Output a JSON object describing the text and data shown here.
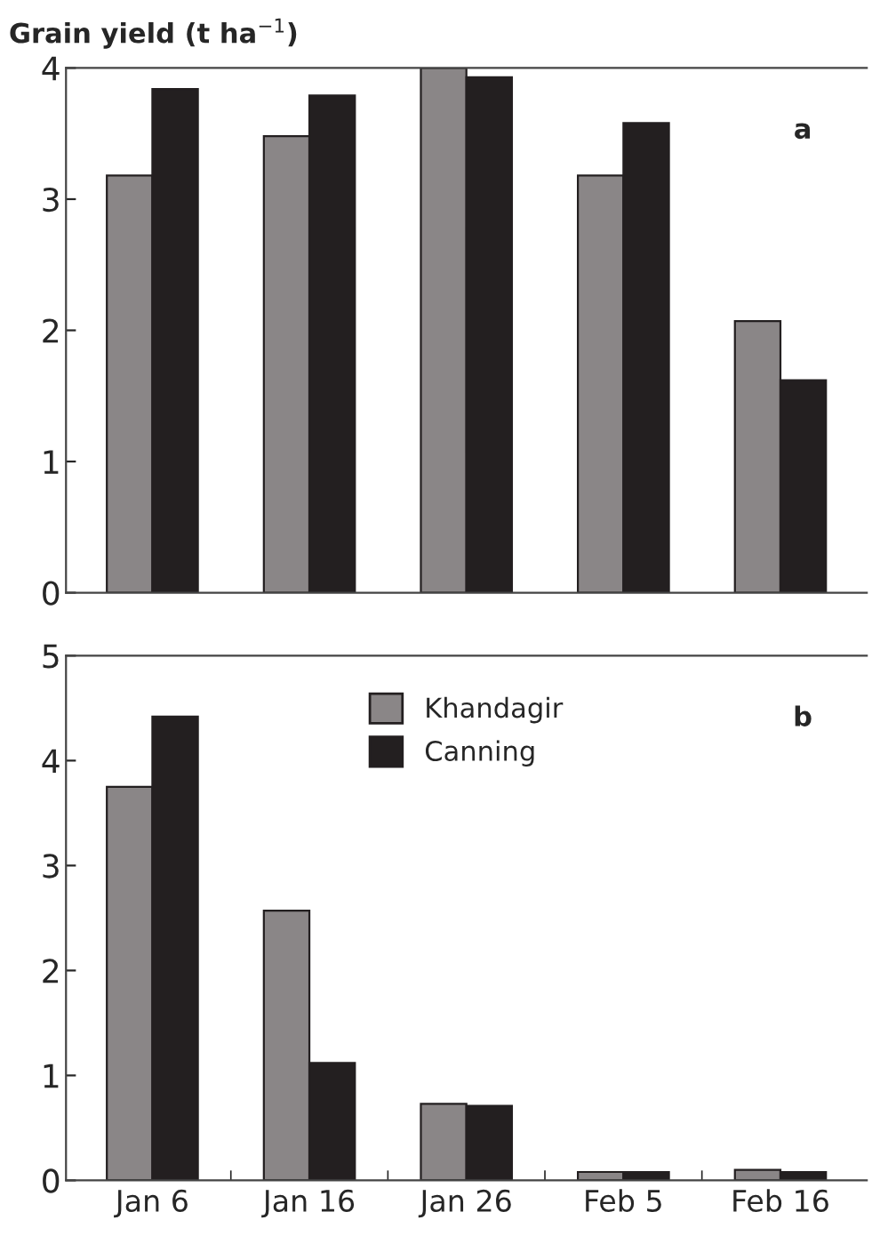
{
  "chart_data": [
    {
      "type": "bar",
      "title": "Grain yield (t ha$^{−1}$)",
      "categories": [
        null,
        null,
        null,
        null,
        null
      ],
      "series": [
        {
          "color": "#8a8687",
          "values": [
            3.18,
            3.48,
            4.0,
            3.18,
            2.07
          ]
        },
        {
          "color": "#231f20",
          "values": [
            3.84,
            3.79,
            3.93,
            3.58,
            1.62
          ]
        }
      ],
      "ylim": [
        0,
        4
      ],
      "yticks": [
        0,
        1,
        2,
        3,
        4
      ],
      "tick_labels": "y",
      "grid": false,
      "legend": false,
      "annotations": [
        "a"
      ]
    },
    {
      "type": "bar",
      "categories": [
        "Jan 6",
        "Jan 16",
        "Jan 26",
        "Feb 5",
        "Feb 16"
      ],
      "series": [
        {
          "name": "Khandagir",
          "color": "#8a8687",
          "values": [
            3.75,
            2.57,
            0.73,
            0.08,
            0.1
          ]
        },
        {
          "name": "Canning",
          "color": "#231f20",
          "values": [
            4.42,
            1.12,
            0.71,
            0.08,
            0.08
          ]
        }
      ],
      "ylim": [
        0,
        5
      ],
      "yticks": [
        0,
        1,
        2,
        3,
        4,
        5
      ],
      "grid": false,
      "legend": "top",
      "annotations": [
        "b"
      ]
    }
  ]
}
